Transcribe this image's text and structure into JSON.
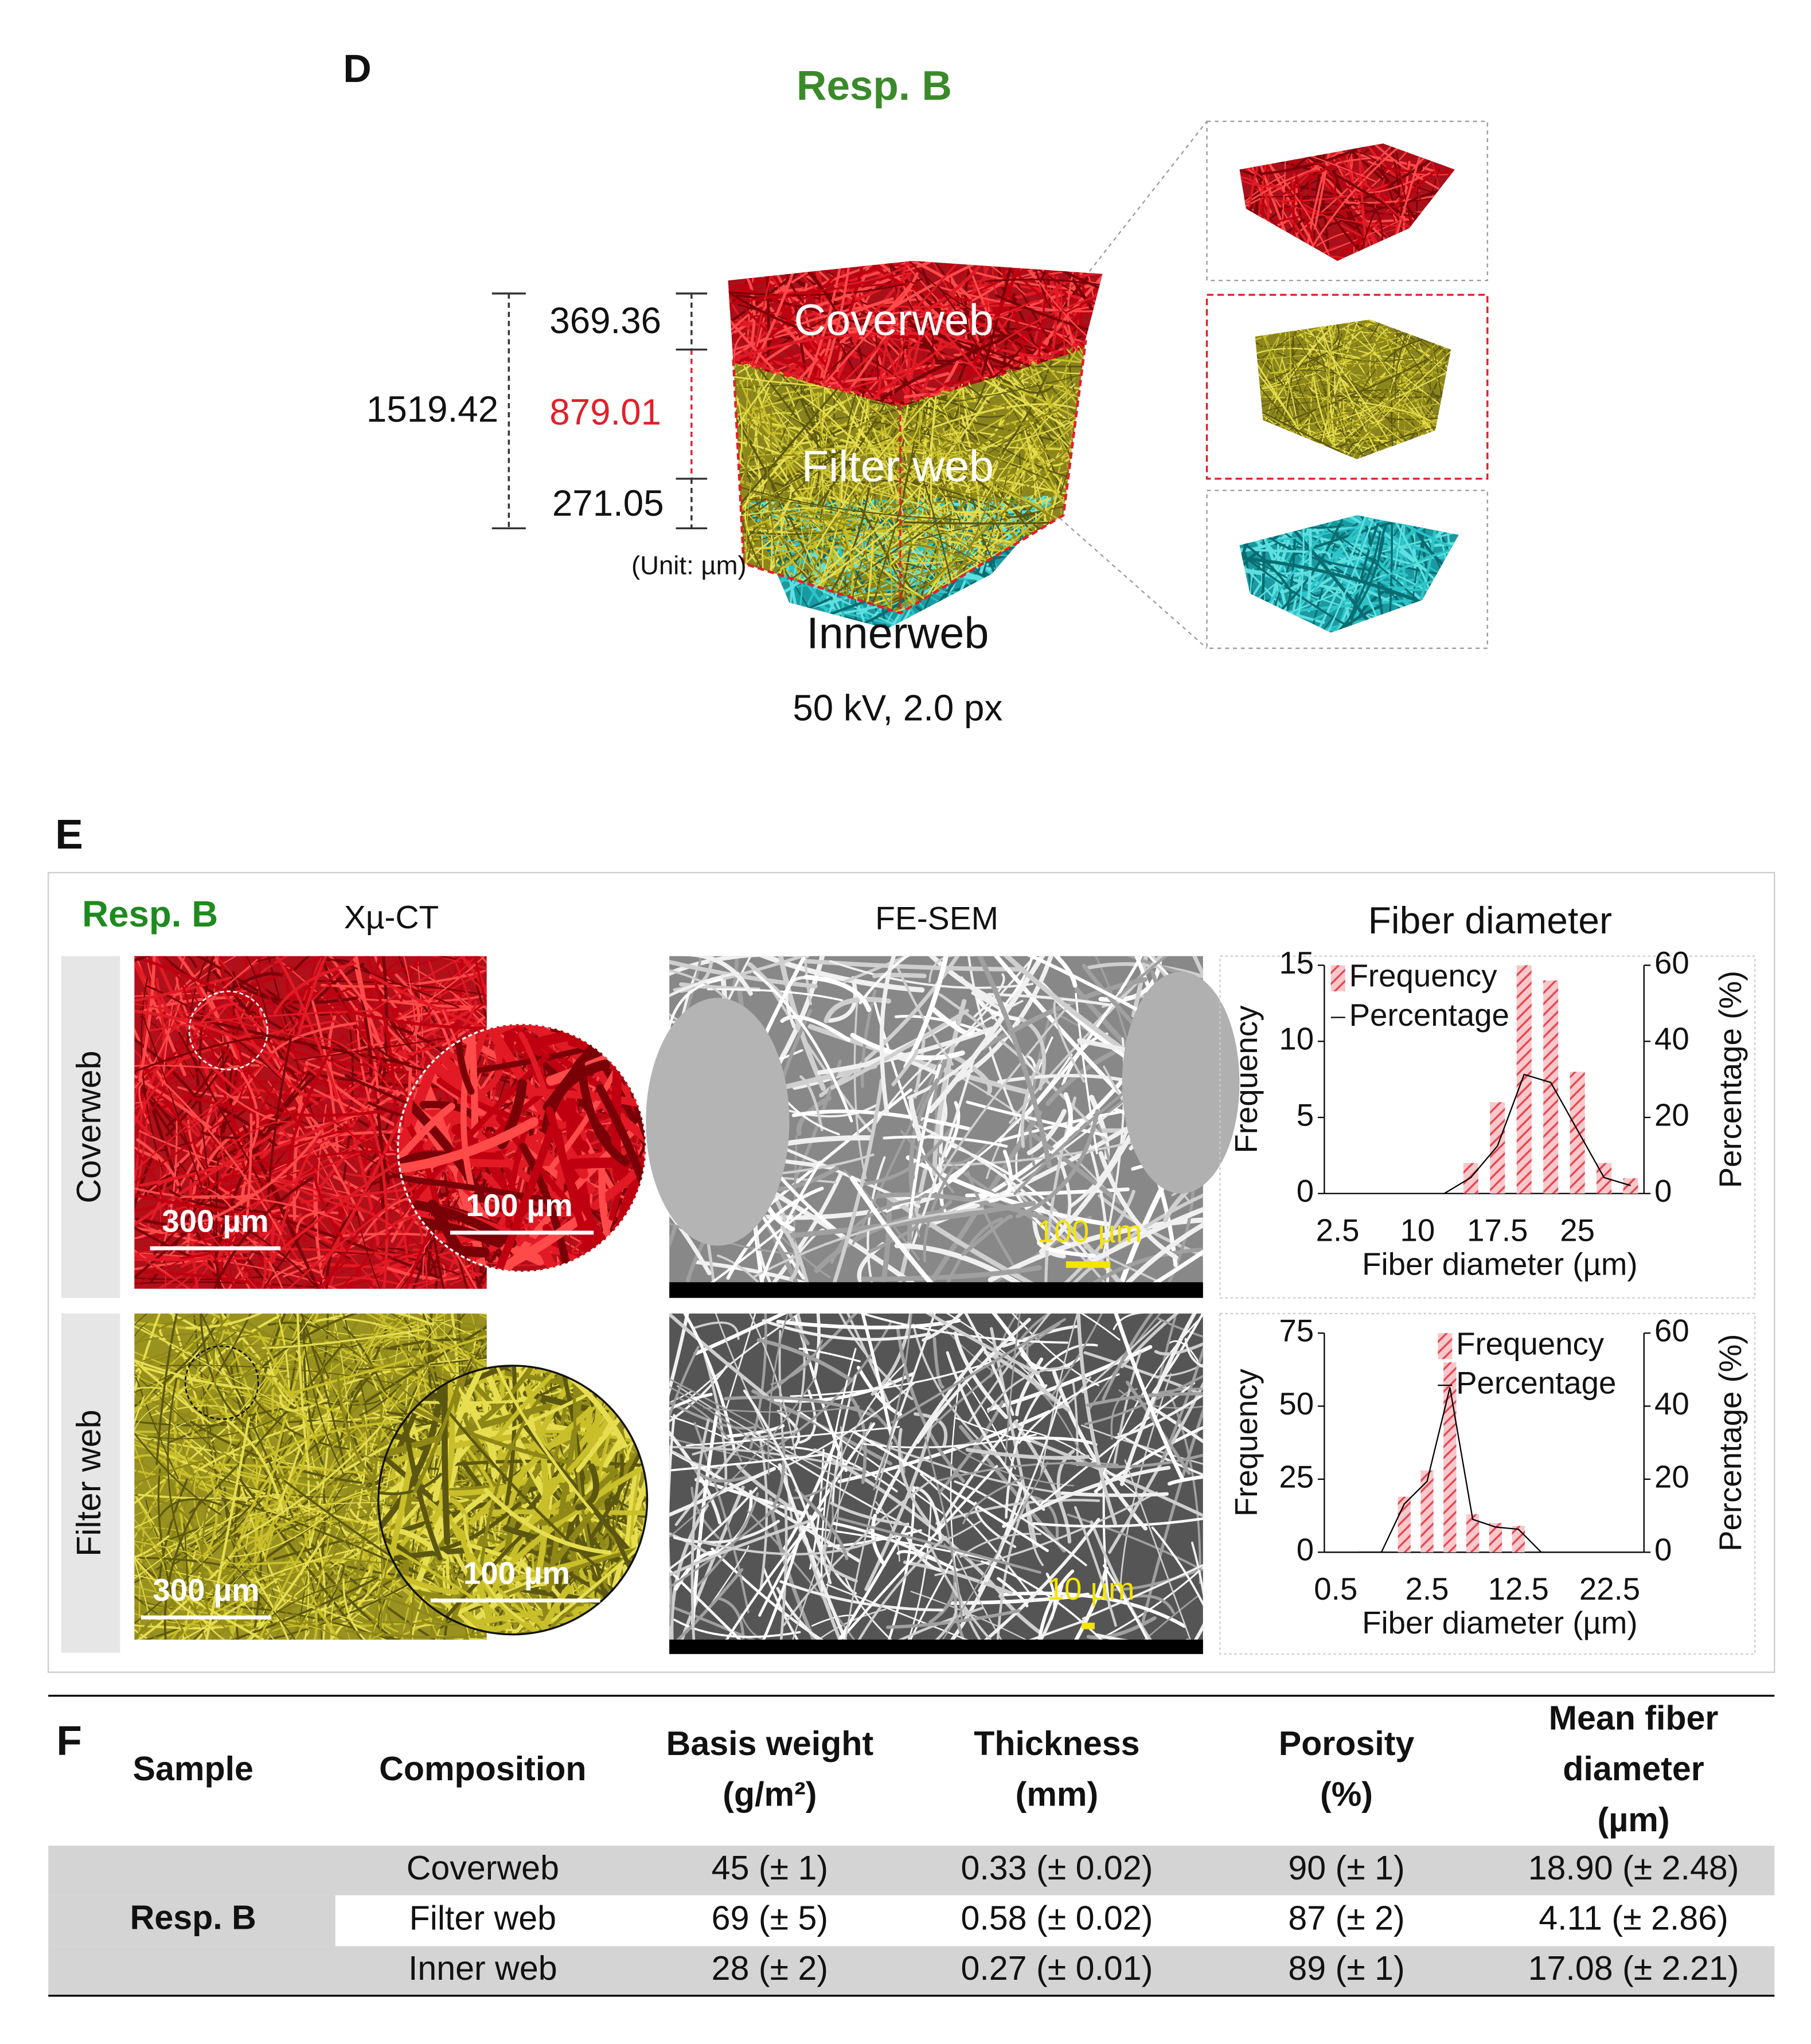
{
  "panel_d": {
    "label": "D",
    "title": "Resp. B",
    "total_thickness": "1519.42",
    "thicknesses": [
      "369.36",
      "879.01",
      "271.05"
    ],
    "unit": "(Unit: µm)",
    "layers": [
      "Coverweb",
      "Filter web",
      "Innerweb"
    ],
    "scan_settings": "50 kV, 2.0 px"
  },
  "panel_e": {
    "label": "E",
    "sample": "Resp. B",
    "columns": [
      "Xµ-CT",
      "FE-SEM",
      "Fiber diameter"
    ],
    "rows": [
      "Coverweb",
      "Filter web"
    ],
    "ct_scale_bars": [
      [
        "300 µm",
        "100 µm"
      ],
      [
        "300 µm",
        "100 µm"
      ]
    ],
    "sem_scale_bars": [
      "100 µm",
      "10 µm"
    ]
  },
  "chart_data": [
    {
      "type": "bar",
      "categories": [
        2.5,
        null,
        null,
        10,
        null,
        null,
        17.5,
        null,
        null,
        25,
        null,
        null
      ],
      "series": [
        {
          "name": "Frequency",
          "color": "#e8474f",
          "values": [
            0,
            0,
            0,
            0,
            0,
            2,
            6,
            15,
            14,
            8,
            2,
            1
          ]
        },
        {
          "name": "Percentage",
          "type": "line",
          "axis": "y2",
          "color": "#000000",
          "values": [
            null,
            null,
            null,
            null,
            0,
            4.2,
            12.5,
            31.3,
            29.2,
            16.7,
            4.2,
            2.1
          ]
        }
      ],
      "x_label": "Fiber diameter (µm)",
      "y_label": "Frequency",
      "y2_label": "Percentage (%)",
      "ylim": [
        0,
        15
      ],
      "yticks": [
        0,
        5,
        10,
        15
      ],
      "y2lim": [
        0,
        60
      ],
      "y2ticks": [
        0,
        20,
        40,
        60
      ],
      "legend": "upper left"
    },
    {
      "type": "bar",
      "categories": [
        0.5,
        null,
        null,
        null,
        2.5,
        null,
        null,
        null,
        12.5,
        null,
        null,
        null,
        22.5,
        null
      ],
      "series": [
        {
          "name": "Frequency",
          "color": "#e8474f",
          "values": [
            0,
            0,
            0,
            19,
            28,
            65,
            13,
            10,
            9,
            0,
            0,
            0,
            0,
            0
          ]
        },
        {
          "name": "Percentage",
          "type": "line",
          "axis": "y2",
          "color": "#000000",
          "values": [
            null,
            0,
            0,
            13.2,
            19.4,
            45.1,
            9.0,
            6.9,
            6.3,
            0,
            null,
            null,
            null,
            null
          ]
        }
      ],
      "x_label": "Fiber diameter (µm)",
      "y_label": "Frequency",
      "y2_label": "Percentage (%)",
      "ylim": [
        0,
        75
      ],
      "yticks": [
        0,
        25,
        50,
        75
      ],
      "y2lim": [
        0,
        60
      ],
      "y2ticks": [
        0,
        20,
        40,
        60
      ],
      "legend": "upper right"
    }
  ],
  "panel_f": {
    "label": "F",
    "header": [
      [
        "Sample"
      ],
      [
        "Composition"
      ],
      [
        "Basis weight",
        "(g/m²)"
      ],
      [
        "Thickness",
        "(mm)"
      ],
      [
        "Porosity",
        "(%)"
      ],
      [
        "Mean fiber",
        "diameter",
        "(µm)"
      ]
    ],
    "sample": "Resp. B",
    "rows": [
      [
        "Coverweb",
        "45 (± 1)",
        "0.33 (± 0.02)",
        "90 (± 1)",
        "18.90 (± 2.48)"
      ],
      [
        "Filter web",
        "69 (± 5)",
        "0.58 (± 0.02)",
        "87 (± 2)",
        "4.11 (± 2.86)"
      ],
      [
        "Inner web",
        "28 (± 2)",
        "0.27 (± 0.01)",
        "89 (± 1)",
        "17.08 (± 2.21)"
      ]
    ]
  }
}
